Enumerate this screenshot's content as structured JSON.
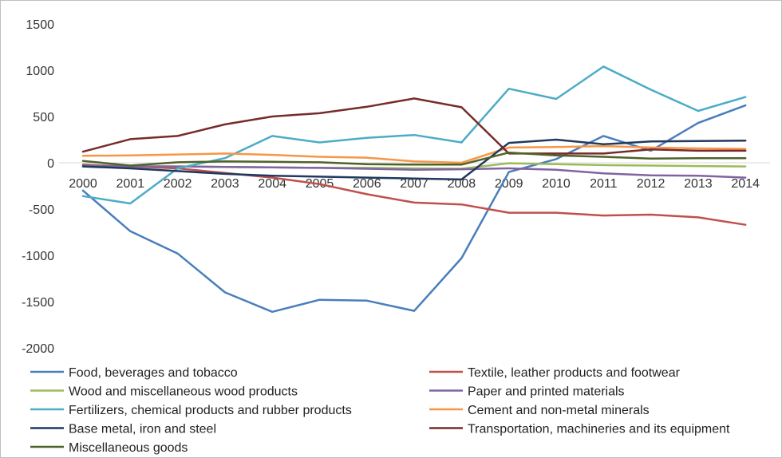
{
  "chart_data": {
    "type": "line",
    "title": "",
    "xlabel": "",
    "ylabel": "",
    "ylim": [
      -2000,
      1500
    ],
    "yticks": [
      1500,
      1000,
      500,
      0,
      -500,
      -1000,
      -1500,
      -2000
    ],
    "grid": false,
    "legend_position": "bottom",
    "categories": [
      "2000",
      "2001",
      "2002",
      "2003",
      "2004",
      "2005",
      "2006",
      "2007",
      "2008",
      "2009",
      "2010",
      "2011",
      "2012",
      "2013",
      "2014"
    ],
    "series": [
      {
        "name": "Food, beverages and tobacco",
        "color": "#4a7ebb",
        "values": [
          -300,
          -740,
          -980,
          -1400,
          -1610,
          -1480,
          -1490,
          -1600,
          -1030,
          -100,
          40,
          290,
          130,
          430,
          620
        ]
      },
      {
        "name": "Textile, leather products and footwear",
        "color": "#c0504d",
        "values": [
          -20,
          -40,
          -60,
          -110,
          -160,
          -230,
          -340,
          -430,
          -450,
          -540,
          -540,
          -570,
          -560,
          -590,
          -670
        ]
      },
      {
        "name": "Wood and miscellaneous wood products",
        "color": "#9bbb59",
        "values": [
          -30,
          -35,
          -40,
          -45,
          -50,
          -55,
          -55,
          -60,
          -65,
          -5,
          -15,
          -25,
          -30,
          -35,
          -40
        ]
      },
      {
        "name": "Paper and printed materials",
        "color": "#8064a2",
        "values": [
          -30,
          -40,
          -40,
          -45,
          -50,
          -55,
          -65,
          -75,
          -70,
          -60,
          -75,
          -115,
          -135,
          -140,
          -160
        ]
      },
      {
        "name": "Fertilizers, chemical products and rubber products",
        "color": "#4bacc6",
        "values": [
          -360,
          -440,
          -60,
          50,
          290,
          220,
          270,
          300,
          220,
          800,
          690,
          1040,
          790,
          560,
          710
        ]
      },
      {
        "name": "Cement and non-metal minerals",
        "color": "#f79646",
        "values": [
          75,
          80,
          90,
          100,
          85,
          65,
          55,
          15,
          0,
          165,
          170,
          180,
          165,
          155,
          150
        ]
      },
      {
        "name": "Base metal, iron and steel",
        "color": "#1f3a5f",
        "values": [
          -40,
          -60,
          -90,
          -120,
          -140,
          -150,
          -160,
          -170,
          -180,
          215,
          250,
          200,
          230,
          235,
          240
        ]
      },
      {
        "name": "Transportation, machineries and its equipment",
        "color": "#772c2a",
        "values": [
          120,
          255,
          290,
          415,
          500,
          535,
          605,
          695,
          600,
          100,
          100,
          100,
          145,
          130,
          130
        ]
      },
      {
        "name": "Miscellaneous goods",
        "color": "#4f6228",
        "values": [
          20,
          -30,
          5,
          15,
          10,
          5,
          -15,
          -20,
          -20,
          110,
          80,
          65,
          45,
          50,
          50
        ]
      }
    ]
  }
}
